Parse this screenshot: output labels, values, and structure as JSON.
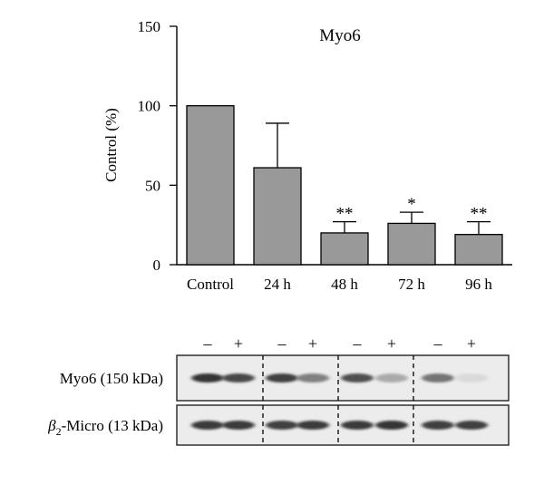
{
  "chart_data": {
    "type": "bar",
    "title": "Myo6",
    "ylabel": "Control (%)",
    "xlabel": "",
    "ylim": [
      0,
      150
    ],
    "yticks": [
      0,
      50,
      100,
      150
    ],
    "categories": [
      "Control",
      "24 h",
      "48 h",
      "72 h",
      "96 h"
    ],
    "values": [
      100,
      61,
      20,
      26,
      19
    ],
    "error_upper": [
      0,
      28,
      7,
      7,
      8
    ],
    "significance": [
      "",
      "",
      "**",
      "*",
      "**"
    ],
    "bar_color": "#999999",
    "grid": false,
    "legend": "none"
  },
  "blot": {
    "lane_signs": [
      "–",
      "+",
      "–",
      "+",
      "–",
      "+",
      "–",
      "+"
    ],
    "rows": [
      {
        "label_prefix": "Myo6 (150 kDa)",
        "label_sub": "",
        "label_suffix": "",
        "band_intensity": [
          0.85,
          0.75,
          0.8,
          0.5,
          0.72,
          0.3,
          0.55,
          0.08
        ]
      },
      {
        "label_prefix": "β",
        "label_sub": "2",
        "label_suffix": "-Micro (13 kDa)",
        "band_intensity": [
          0.82,
          0.82,
          0.8,
          0.82,
          0.82,
          0.85,
          0.8,
          0.8
        ]
      }
    ]
  }
}
